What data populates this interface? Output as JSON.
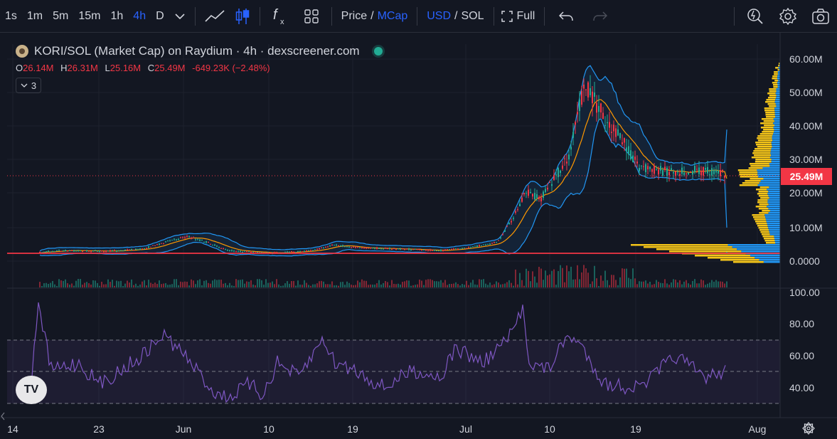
{
  "toolbar": {
    "intervals": [
      "1s",
      "1m",
      "5m",
      "15m",
      "1h",
      "4h",
      "D"
    ],
    "active_interval": "4h",
    "price_label": "Price",
    "mcap_label": "MCap",
    "usd_label": "USD",
    "sol_label": "SOL",
    "full_label": "Full",
    "icons": [
      "chevron-down-icon",
      "line-chart-icon",
      "candlestick-icon",
      "indicator-fx-icon",
      "layout-grid-icon",
      "fullscreen-icon",
      "undo-icon",
      "redo-icon",
      "alert-icon",
      "settings-gear-icon",
      "camera-icon"
    ]
  },
  "legend": {
    "title": "KORI/SOL (Market Cap) on Raydium · 4h · dexscreener.com",
    "open_key": "O",
    "open": "26.14M",
    "high_key": "H",
    "high": "26.31M",
    "low_key": "L",
    "low": "25.16M",
    "close_key": "C",
    "close": "25.49M",
    "change": "-649.23K (−2.48%)",
    "indicator_count": "3"
  },
  "price_axis": {
    "ticks": [
      "60.00M",
      "50.00M",
      "40.00M",
      "30.00M",
      "20.00M",
      "10.00M",
      "0.0000"
    ],
    "last_price": "25.49M"
  },
  "rsi_axis": {
    "ticks": [
      "100.00",
      "80.00",
      "60.00",
      "40.00"
    ]
  },
  "time_axis": {
    "ticks": [
      "14",
      "23",
      "Jun",
      "10",
      "19",
      "Jul",
      "10",
      "19",
      "Aug"
    ]
  },
  "colors": {
    "background": "#131722",
    "up": "#22ab94",
    "down": "#f23645",
    "band": "#2196f3",
    "ma": "#ff9800",
    "rsi": "#7e57c2",
    "volume_profile_up": "#2196f3",
    "volume_profile_down": "#f5c518"
  }
}
